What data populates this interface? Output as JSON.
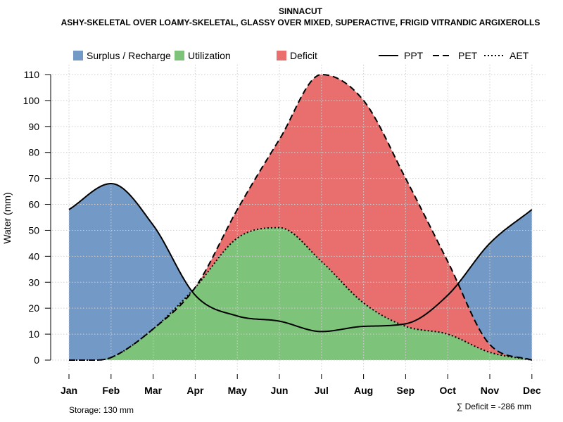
{
  "chart_data": {
    "type": "area",
    "title": "SINNACUT",
    "subtitle": "ASHY-SKELETAL OVER LOAMY-SKELETAL, GLASSY OVER MIXED, SUPERACTIVE, FRIGID VITRANDIC ARGIXEROLLS",
    "ylabel": "Water (mm)",
    "xlabel": "",
    "ylim": [
      0,
      110
    ],
    "yticks": [
      0,
      10,
      20,
      30,
      40,
      50,
      60,
      70,
      80,
      90,
      100,
      110
    ],
    "categories": [
      "Jan",
      "Feb",
      "Mar",
      "Apr",
      "May",
      "Jun",
      "Jul",
      "Aug",
      "Sep",
      "Oct",
      "Nov",
      "Dec"
    ],
    "grid": true,
    "series": [
      {
        "name": "PPT",
        "style": "solid",
        "x": [
          0,
          1,
          2,
          3,
          4,
          5,
          6,
          7,
          8,
          9,
          10,
          11
        ],
        "values": [
          58,
          68,
          52,
          25,
          17,
          15,
          11,
          13,
          14,
          25,
          45,
          58
        ]
      },
      {
        "name": "PET",
        "style": "dashed",
        "x": [
          0,
          0.6,
          1,
          2,
          3,
          4,
          5,
          6,
          7,
          8,
          9,
          10,
          11
        ],
        "values": [
          0,
          0,
          1,
          12,
          28,
          58,
          85,
          110,
          100,
          70,
          38,
          6,
          0
        ]
      },
      {
        "name": "AET",
        "style": "dotted",
        "x": [
          0,
          0.6,
          1,
          2,
          3,
          4,
          5,
          6,
          7,
          8,
          9,
          10,
          11
        ],
        "values": [
          0,
          0,
          1,
          12,
          28,
          47,
          51,
          38,
          22,
          13,
          10,
          3,
          0
        ]
      }
    ],
    "legend": [
      {
        "label": "Surplus / Recharge",
        "kind": "fill",
        "color": "#7399C6"
      },
      {
        "label": "Utilization",
        "kind": "fill",
        "color": "#7DC47A"
      },
      {
        "label": "Deficit",
        "kind": "fill",
        "color": "#E96F6F"
      },
      {
        "label": "PPT",
        "kind": "line",
        "style": "solid"
      },
      {
        "label": "PET",
        "kind": "line",
        "style": "dashed"
      },
      {
        "label": "AET",
        "kind": "line",
        "style": "dotted"
      }
    ],
    "legend_position": "top",
    "colors": {
      "surplus": "#7399C6",
      "utilization": "#7DC47A",
      "deficit": "#E96F6F",
      "grid": "#cfcfcf"
    },
    "annotations": {
      "storage": "Storage: 130 mm",
      "deficit": "∑ Deficit = -286 mm"
    }
  }
}
